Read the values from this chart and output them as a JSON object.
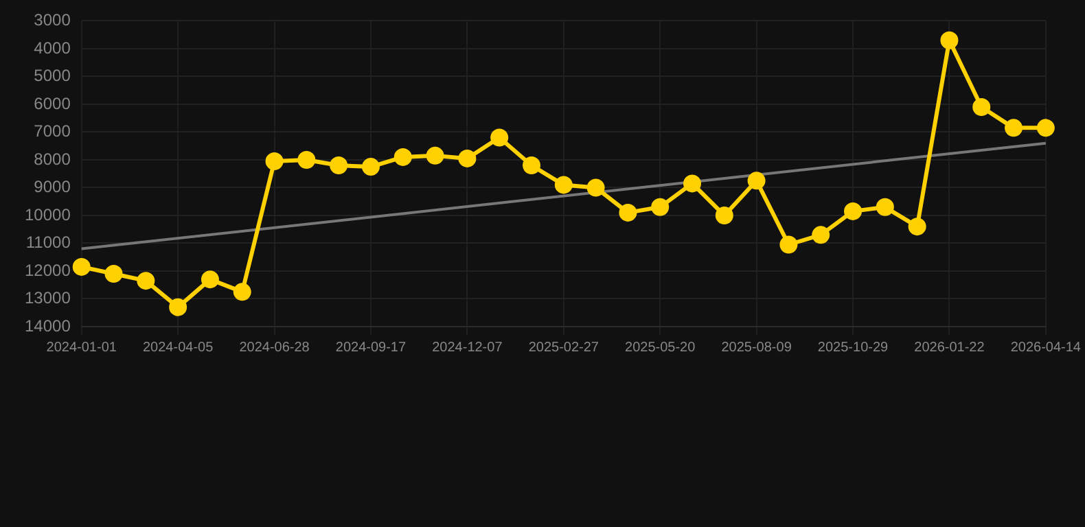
{
  "chart_data": {
    "type": "line",
    "categories": [
      "2024-01-01",
      null,
      null,
      "2024-04-05",
      null,
      null,
      "2024-06-28",
      null,
      null,
      "2024-09-17",
      null,
      null,
      "2024-12-07",
      null,
      null,
      "2025-02-27",
      null,
      null,
      "2025-05-20",
      null,
      null,
      "2025-08-09",
      null,
      null,
      "2025-10-29",
      null,
      null,
      "2026-01-22",
      null,
      null,
      "2026-04-14"
    ],
    "series": [
      {
        "color": "#ffd100",
        "values": [
          11850,
          12100,
          12350,
          13300,
          12300,
          12750,
          8050,
          8000,
          8200,
          8250,
          7900,
          7850,
          7950,
          7200,
          8200,
          8900,
          9000,
          9900,
          9700,
          8850,
          10000,
          8750,
          11050,
          10700,
          9850,
          9700,
          10400,
          3700,
          6100,
          6850,
          6850
        ]
      },
      {
        "type": "line",
        "color": "#777777",
        "marker": "none",
        "values": [
          11200,
          null,
          null,
          null,
          null,
          null,
          null,
          null,
          null,
          null,
          null,
          null,
          null,
          null,
          null,
          null,
          null,
          null,
          null,
          null,
          null,
          null,
          null,
          null,
          null,
          null,
          null,
          null,
          null,
          null,
          7400
        ]
      }
    ],
    "ylim": [
      14000,
      3000
    ],
    "yticks": [
      3000,
      4000,
      5000,
      6000,
      7000,
      8000,
      9000,
      10000,
      11000,
      12000,
      13000,
      14000
    ],
    "grid": true,
    "marker": "circle",
    "line_style": "solid",
    "legend": false
  }
}
